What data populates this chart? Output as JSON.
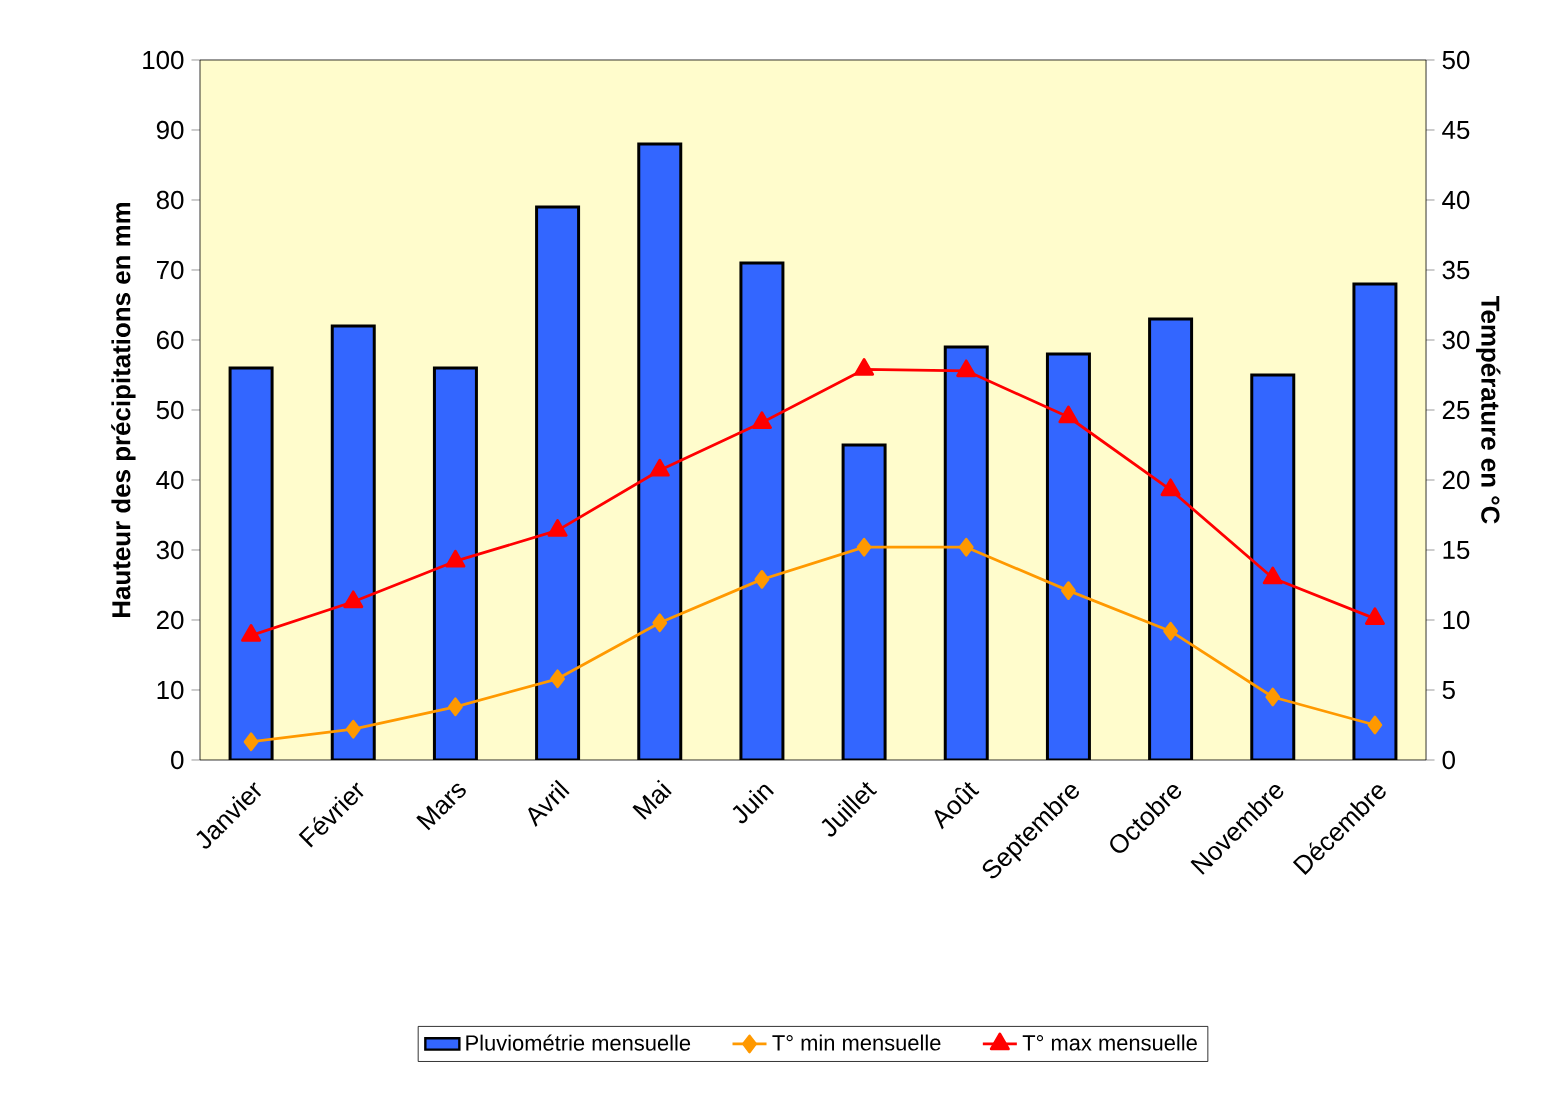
{
  "chart_data": {
    "type": "bar",
    "ylabel": "Hauteur des précipitations en mm",
    "y2label": "Température en °C",
    "categories": [
      "Janvier",
      "Février",
      "Mars",
      "Avril",
      "Mai",
      "Juin",
      "Juillet",
      "Août",
      "Septembre",
      "Octobre",
      "Novembre",
      "Décembre"
    ],
    "series": [
      {
        "name": "Pluviométrie mensuelle",
        "color": "#3366ff",
        "values": [
          56,
          62,
          56,
          79,
          88,
          71,
          45,
          59,
          58,
          63,
          55,
          68
        ]
      },
      {
        "name": "T° min mensuelle",
        "type": "line",
        "axis": "y2",
        "marker": "diamond",
        "color": "#ff9900",
        "values": [
          1.3,
          2.2,
          3.8,
          5.8,
          9.8,
          12.9,
          15.2,
          15.2,
          12.1,
          9.2,
          4.5,
          2.5
        ]
      },
      {
        "name": "T° max mensuelle",
        "type": "line",
        "axis": "y2",
        "marker": "triangle",
        "color": "#ff0000",
        "values": [
          8.9,
          11.3,
          14.2,
          16.4,
          20.7,
          24.1,
          27.9,
          27.8,
          24.5,
          19.3,
          13.0,
          10.1
        ]
      }
    ],
    "ylim": [
      0,
      100
    ],
    "yticks": [
      0,
      10,
      20,
      30,
      40,
      50,
      60,
      70,
      80,
      90,
      100
    ],
    "y2lim": [
      0,
      50
    ],
    "y2ticks": [
      0,
      5,
      10,
      15,
      20,
      25,
      30,
      35,
      40,
      45,
      50
    ],
    "legend": "bottom",
    "grid": false
  }
}
